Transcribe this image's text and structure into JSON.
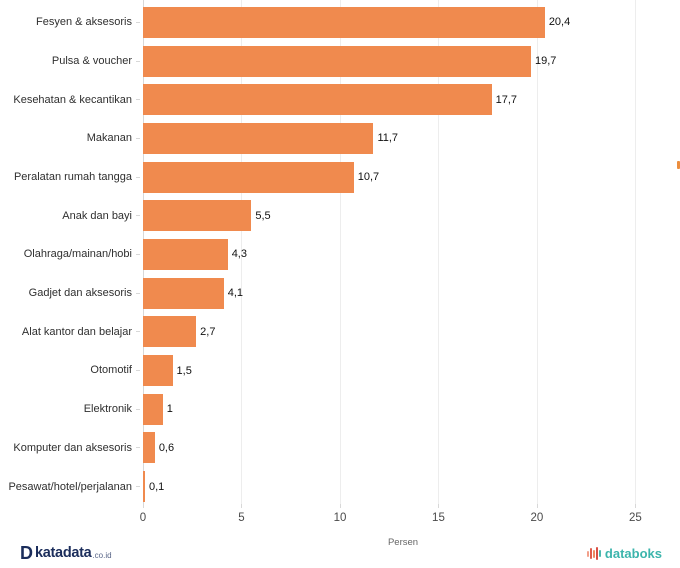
{
  "chart_data": {
    "type": "bar",
    "orientation": "horizontal",
    "categories": [
      "Fesyen & aksesoris",
      "Pulsa & voucher",
      "Kesehatan & kecantikan",
      "Makanan",
      "Peralatan rumah tangga",
      "Anak dan bayi",
      "Olahraga/mainan/hobi",
      "Gadjet dan aksesoris",
      "Alat kantor dan belajar",
      "Otomotif",
      "Elektronik",
      "Komputer dan aksesoris",
      "Pesawat/hotel/perjalanan"
    ],
    "values": [
      20.4,
      19.7,
      17.7,
      11.7,
      10.7,
      5.5,
      4.3,
      4.1,
      2.7,
      1.5,
      1,
      0.6,
      0.1
    ],
    "value_labels": [
      "20,4",
      "19,7",
      "17,7",
      "11,7",
      "10,7",
      "5,5",
      "4,3",
      "4,1",
      "2,7",
      "1,5",
      "1",
      "0,6",
      "0,1"
    ],
    "title": "",
    "xlabel": "Persen",
    "ylabel": "",
    "xticks": [
      0,
      5,
      10,
      15,
      20,
      25
    ],
    "xlim": [
      0,
      26.4
    ],
    "grid": true,
    "legend": "none",
    "bar_color": "#F08A4E"
  },
  "footer": {
    "katadata": {
      "d_mark": "D",
      "brand": "katadata",
      "suffix": ".co.id",
      "color": "#1B2D5B"
    },
    "databoks": {
      "brand": "databoks",
      "color": "#3CB5AC",
      "icon_bar_colors": [
        "#F2A08B",
        "#E05C4B",
        "#EF8A62",
        "#D94F43",
        "#4BB8AE"
      ],
      "icon_bar_heights": [
        6,
        11,
        8,
        13,
        7
      ]
    }
  },
  "artifacts": {
    "edge_clipped_color": "#EC8E3E"
  }
}
